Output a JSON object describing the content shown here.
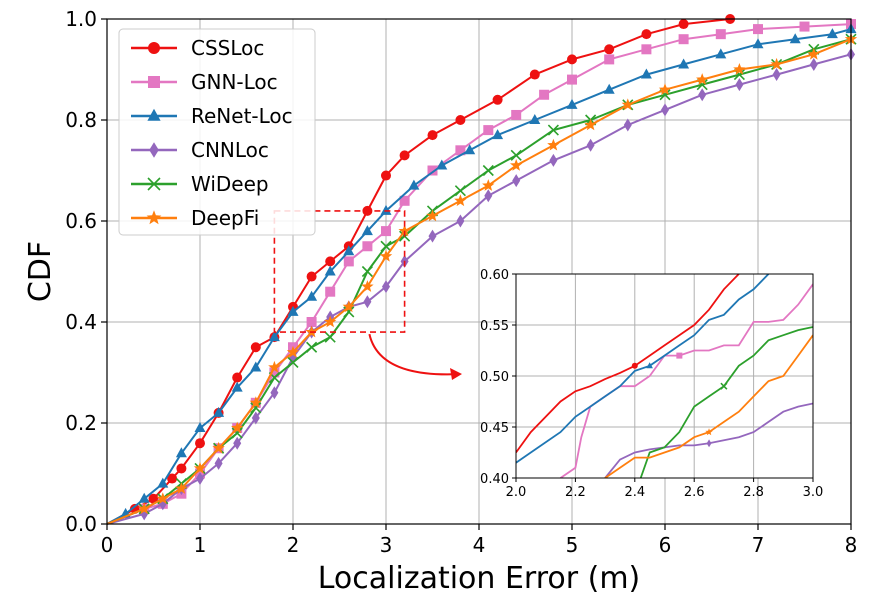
{
  "chart_data": {
    "type": "line",
    "title": "",
    "xlabel": "Localization Error (m)",
    "ylabel": "CDF",
    "xlim": [
      0,
      8
    ],
    "ylim": [
      0,
      1.0
    ],
    "xticks": [
      "0",
      "1",
      "2",
      "3",
      "4",
      "5",
      "6",
      "7",
      "8"
    ],
    "yticks": [
      "0.0",
      "0.2",
      "0.4",
      "0.6",
      "0.8",
      "1.0"
    ],
    "grid": true,
    "legend_position": "top-left",
    "series": [
      {
        "name": "CSSLoc",
        "color": "#ee1111",
        "marker": "circle",
        "x": [
          0,
          0.3,
          0.5,
          0.7,
          0.8,
          1.0,
          1.2,
          1.4,
          1.6,
          1.8,
          2.0,
          2.2,
          2.4,
          2.6,
          2.8,
          3.0,
          3.2,
          3.5,
          3.8,
          4.2,
          4.6,
          5.0,
          5.4,
          5.8,
          6.2,
          6.7
        ],
        "y": [
          0,
          0.03,
          0.05,
          0.09,
          0.11,
          0.16,
          0.22,
          0.29,
          0.35,
          0.37,
          0.43,
          0.49,
          0.52,
          0.55,
          0.62,
          0.69,
          0.73,
          0.77,
          0.8,
          0.84,
          0.89,
          0.92,
          0.94,
          0.97,
          0.99,
          1.0
        ]
      },
      {
        "name": "GNN-Loc",
        "color": "#e377c2",
        "marker": "square",
        "x": [
          0,
          0.4,
          0.6,
          0.8,
          1.0,
          1.2,
          1.4,
          1.6,
          1.8,
          2.0,
          2.2,
          2.4,
          2.6,
          2.8,
          3.0,
          3.2,
          3.5,
          3.8,
          4.1,
          4.4,
          4.7,
          5.0,
          5.4,
          5.8,
          6.2,
          6.6,
          7.0,
          7.5,
          8.0
        ],
        "y": [
          0,
          0.03,
          0.04,
          0.06,
          0.1,
          0.15,
          0.19,
          0.24,
          0.3,
          0.35,
          0.4,
          0.46,
          0.52,
          0.55,
          0.58,
          0.64,
          0.7,
          0.74,
          0.78,
          0.81,
          0.85,
          0.88,
          0.92,
          0.94,
          0.96,
          0.97,
          0.98,
          0.985,
          0.99
        ]
      },
      {
        "name": "ReNet-Loc",
        "color": "#1f77b4",
        "marker": "triangle",
        "x": [
          0,
          0.2,
          0.4,
          0.6,
          0.8,
          1.0,
          1.2,
          1.4,
          1.6,
          1.8,
          2.0,
          2.2,
          2.4,
          2.6,
          2.8,
          3.0,
          3.3,
          3.6,
          3.9,
          4.2,
          4.6,
          5.0,
          5.4,
          5.8,
          6.2,
          6.6,
          7.0,
          7.4,
          7.8,
          8.0
        ],
        "y": [
          0,
          0.02,
          0.05,
          0.08,
          0.14,
          0.19,
          0.22,
          0.27,
          0.31,
          0.37,
          0.42,
          0.45,
          0.5,
          0.54,
          0.58,
          0.62,
          0.67,
          0.71,
          0.74,
          0.77,
          0.8,
          0.83,
          0.86,
          0.89,
          0.91,
          0.93,
          0.95,
          0.96,
          0.97,
          0.98
        ]
      },
      {
        "name": "CNNLoc",
        "color": "#9467bd",
        "marker": "diamond",
        "x": [
          0,
          0.4,
          0.6,
          0.8,
          1.0,
          1.2,
          1.4,
          1.6,
          1.8,
          2.0,
          2.2,
          2.4,
          2.6,
          2.8,
          3.0,
          3.2,
          3.5,
          3.8,
          4.1,
          4.4,
          4.8,
          5.2,
          5.6,
          6.0,
          6.4,
          6.8,
          7.2,
          7.6,
          8.0
        ],
        "y": [
          0,
          0.02,
          0.04,
          0.07,
          0.09,
          0.12,
          0.16,
          0.21,
          0.26,
          0.33,
          0.38,
          0.41,
          0.43,
          0.44,
          0.47,
          0.52,
          0.57,
          0.6,
          0.65,
          0.68,
          0.72,
          0.75,
          0.79,
          0.82,
          0.85,
          0.87,
          0.89,
          0.91,
          0.93
        ]
      },
      {
        "name": "WiDeep",
        "color": "#2ca02c",
        "marker": "x",
        "x": [
          0,
          0.4,
          0.6,
          0.8,
          1.0,
          1.2,
          1.4,
          1.6,
          1.8,
          2.0,
          2.2,
          2.4,
          2.6,
          2.8,
          3.0,
          3.2,
          3.5,
          3.8,
          4.1,
          4.4,
          4.8,
          5.2,
          5.6,
          6.0,
          6.4,
          6.8,
          7.2,
          7.6,
          8.0
        ],
        "y": [
          0,
          0.03,
          0.05,
          0.08,
          0.11,
          0.15,
          0.18,
          0.23,
          0.29,
          0.32,
          0.35,
          0.37,
          0.42,
          0.5,
          0.55,
          0.57,
          0.62,
          0.66,
          0.7,
          0.73,
          0.78,
          0.8,
          0.83,
          0.85,
          0.87,
          0.89,
          0.91,
          0.94,
          0.96
        ]
      },
      {
        "name": "DeepFi",
        "color": "#ff7f0e",
        "marker": "star",
        "x": [
          0,
          0.4,
          0.6,
          0.8,
          1.0,
          1.2,
          1.4,
          1.6,
          1.8,
          2.0,
          2.2,
          2.4,
          2.6,
          2.8,
          3.0,
          3.2,
          3.5,
          3.8,
          4.1,
          4.4,
          4.8,
          5.2,
          5.6,
          6.0,
          6.4,
          6.8,
          7.2,
          7.6,
          8.0
        ],
        "y": [
          0,
          0.03,
          0.05,
          0.07,
          0.11,
          0.15,
          0.19,
          0.24,
          0.31,
          0.34,
          0.38,
          0.4,
          0.43,
          0.47,
          0.53,
          0.58,
          0.61,
          0.64,
          0.67,
          0.71,
          0.75,
          0.79,
          0.83,
          0.86,
          0.88,
          0.9,
          0.91,
          0.93,
          0.96
        ]
      }
    ],
    "inset": {
      "xlim": [
        2.0,
        3.0
      ],
      "ylim": [
        0.4,
        0.6
      ],
      "xticks": [
        "2.0",
        "2.2",
        "2.4",
        "2.6",
        "2.8",
        "3.0"
      ],
      "yticks": [
        "0.40",
        "0.45",
        "0.50",
        "0.55",
        "0.60"
      ],
      "zoom_box": {
        "x": [
          1.8,
          3.2
        ],
        "y": [
          0.38,
          0.62
        ]
      },
      "series": [
        {
          "name": "CSSLoc",
          "x": [
            2.0,
            2.05,
            2.1,
            2.15,
            2.2,
            2.25,
            2.3,
            2.35,
            2.4,
            2.45,
            2.5,
            2.55,
            2.6,
            2.65,
            2.7,
            2.75
          ],
          "y": [
            0.425,
            0.445,
            0.46,
            0.475,
            0.485,
            0.49,
            0.497,
            0.503,
            0.51,
            0.52,
            0.53,
            0.54,
            0.55,
            0.565,
            0.585,
            0.6
          ]
        },
        {
          "name": "GNN-Loc",
          "x": [
            2.15,
            2.2,
            2.22,
            2.25,
            2.3,
            2.35,
            2.4,
            2.45,
            2.5,
            2.55,
            2.6,
            2.65,
            2.7,
            2.75,
            2.8,
            2.85,
            2.9,
            2.95,
            3.0
          ],
          "y": [
            0.4,
            0.41,
            0.44,
            0.47,
            0.48,
            0.49,
            0.49,
            0.5,
            0.52,
            0.52,
            0.525,
            0.525,
            0.53,
            0.53,
            0.553,
            0.553,
            0.555,
            0.57,
            0.59
          ]
        },
        {
          "name": "ReNet-Loc",
          "x": [
            2.0,
            2.05,
            2.1,
            2.15,
            2.2,
            2.25,
            2.3,
            2.35,
            2.4,
            2.45,
            2.5,
            2.55,
            2.6,
            2.65,
            2.7,
            2.75,
            2.8,
            2.85
          ],
          "y": [
            0.415,
            0.425,
            0.435,
            0.445,
            0.46,
            0.47,
            0.48,
            0.49,
            0.505,
            0.51,
            0.52,
            0.53,
            0.54,
            0.555,
            0.56,
            0.575,
            0.585,
            0.6
          ]
        },
        {
          "name": "CNNLoc",
          "x": [
            2.3,
            2.35,
            2.4,
            2.45,
            2.5,
            2.55,
            2.6,
            2.65,
            2.7,
            2.75,
            2.8,
            2.85,
            2.9,
            2.95,
            3.0
          ],
          "y": [
            0.4,
            0.418,
            0.425,
            0.428,
            0.43,
            0.432,
            0.432,
            0.434,
            0.437,
            0.44,
            0.445,
            0.455,
            0.465,
            0.47,
            0.473
          ]
        },
        {
          "name": "WiDeep",
          "x": [
            2.42,
            2.45,
            2.5,
            2.55,
            2.6,
            2.65,
            2.7,
            2.75,
            2.8,
            2.85,
            2.9,
            2.95,
            3.0
          ],
          "y": [
            0.4,
            0.425,
            0.43,
            0.445,
            0.47,
            0.48,
            0.49,
            0.51,
            0.52,
            0.535,
            0.54,
            0.545,
            0.548
          ]
        },
        {
          "name": "DeepFi",
          "x": [
            2.3,
            2.35,
            2.4,
            2.45,
            2.5,
            2.55,
            2.6,
            2.65,
            2.7,
            2.75,
            2.8,
            2.85,
            2.9,
            2.95,
            3.0
          ],
          "y": [
            0.4,
            0.41,
            0.42,
            0.42,
            0.425,
            0.43,
            0.44,
            0.445,
            0.455,
            0.465,
            0.48,
            0.495,
            0.5,
            0.52,
            0.54
          ]
        }
      ]
    }
  }
}
